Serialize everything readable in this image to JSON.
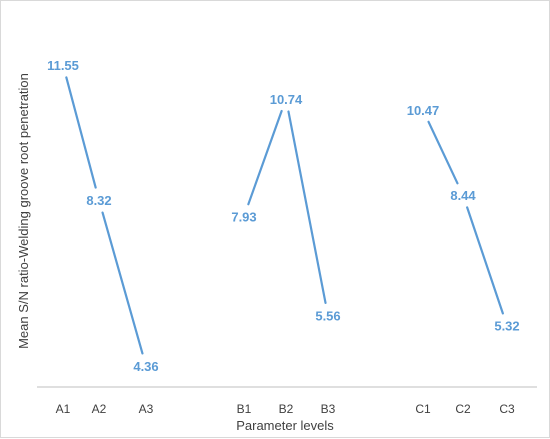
{
  "chart_data": {
    "type": "line",
    "title": "",
    "xlabel": "Parameter levels",
    "ylabel": "Mean S/N ratio-Welding groove root penetration",
    "ylim": [
      4,
      12
    ],
    "grid": false,
    "legend": "none",
    "color": "#5B9BD5",
    "series": [
      {
        "categories": [
          "A1",
          "A2",
          "A3"
        ],
        "values": [
          11.55,
          8.32,
          4.36
        ],
        "labels": [
          "11.55",
          "8.32",
          "4.36"
        ]
      },
      {
        "categories": [
          "B1",
          "B2",
          "B3"
        ],
        "values": [
          7.93,
          10.74,
          5.56
        ],
        "labels": [
          "7.93",
          "10.74",
          "5.56"
        ]
      },
      {
        "categories": [
          "C1",
          "C2",
          "C3"
        ],
        "values": [
          10.47,
          8.44,
          5.32
        ],
        "labels": [
          "10.47",
          "8.44",
          "5.32"
        ]
      }
    ]
  }
}
